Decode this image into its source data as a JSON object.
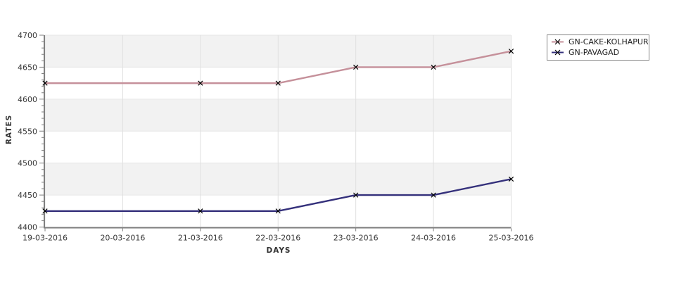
{
  "page": {
    "background_color": "#ffffff"
  },
  "chart_data": {
    "type": "line",
    "title": "",
    "xlabel": "DAYS",
    "ylabel": "RATES",
    "categories": [
      "19-03-2016",
      "20-03-2016",
      "21-03-2016",
      "22-03-2016",
      "23-03-2016",
      "24-03-2016",
      "25-03-2016"
    ],
    "ylim": [
      4400,
      4700
    ],
    "ytick_step": 50,
    "yminor_step": 10,
    "grid": true,
    "legend_position": "top-right",
    "plot_band_colors": [
      "#f2f2f2",
      "#ffffff"
    ],
    "gridline_color": "#e0e0e0",
    "band_edge_color": "#e6e6e6",
    "axis_color": "#7f7f7f",
    "marker": "x",
    "marker_color": "#000000",
    "series": [
      {
        "name": "GN-CAKE-KOLHAPUR",
        "color": "#c5909a",
        "points": [
          {
            "day": "19-03-2016",
            "value": 4625
          },
          {
            "day": "21-03-2016",
            "value": 4625
          },
          {
            "day": "22-03-2016",
            "value": 4625
          },
          {
            "day": "23-03-2016",
            "value": 4650
          },
          {
            "day": "24-03-2016",
            "value": 4650
          },
          {
            "day": "25-03-2016",
            "value": 4675
          }
        ]
      },
      {
        "name": "GN-PAVAGAD",
        "color": "#34307b",
        "points": [
          {
            "day": "19-03-2016",
            "value": 4425
          },
          {
            "day": "21-03-2016",
            "value": 4425
          },
          {
            "day": "22-03-2016",
            "value": 4425
          },
          {
            "day": "23-03-2016",
            "value": 4450
          },
          {
            "day": "24-03-2016",
            "value": 4450
          },
          {
            "day": "25-03-2016",
            "value": 4475
          }
        ]
      }
    ]
  }
}
